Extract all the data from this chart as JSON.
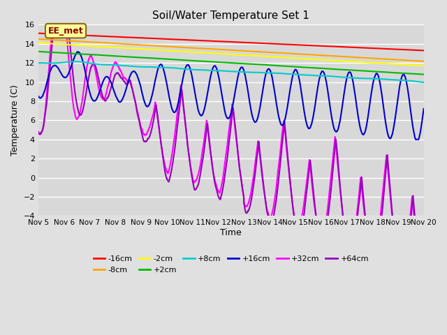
{
  "title": "Soil/Water Temperature Set 1",
  "xlabel": "Time",
  "ylabel": "Temperature (C)",
  "xlim": [
    0,
    15
  ],
  "ylim": [
    -4,
    16
  ],
  "yticks": [
    -4,
    -2,
    0,
    2,
    4,
    6,
    8,
    10,
    12,
    14,
    16
  ],
  "xtick_labels": [
    "Nov 5",
    "Nov 6",
    "Nov 7",
    "Nov 8",
    "Nov 9",
    "Nov 10",
    "Nov 11",
    "Nov 12",
    "Nov 13",
    "Nov 14",
    "Nov 15",
    "Nov 16",
    "Nov 17",
    "Nov 18",
    "Nov 19",
    "Nov 20"
  ],
  "annotation_text": "EE_met",
  "annotation_color": "#8B0000",
  "annotation_bg": "#FFFF99",
  "bg_color": "#E8E8E8",
  "plot_bg": "#D8D8D8",
  "series": {
    "-16cm": {
      "color": "#FF0000",
      "lw": 1.5
    },
    "-8cm": {
      "color": "#FFA500",
      "lw": 1.5
    },
    "-2cm": {
      "color": "#FFFF00",
      "lw": 1.5
    },
    "+2cm": {
      "color": "#00BB00",
      "lw": 1.5
    },
    "+8cm": {
      "color": "#00CCCC",
      "lw": 1.5
    },
    "+16cm": {
      "color": "#0000CC",
      "lw": 1.5
    },
    "+32cm": {
      "color": "#FF00FF",
      "lw": 1.5
    },
    "+64cm": {
      "color": "#9900BB",
      "lw": 1.5
    }
  },
  "legend_labels": [
    "-16cm",
    "-8cm",
    "-2cm",
    "+2cm",
    "+8cm",
    "+16cm",
    "+32cm",
    "+64cm"
  ]
}
